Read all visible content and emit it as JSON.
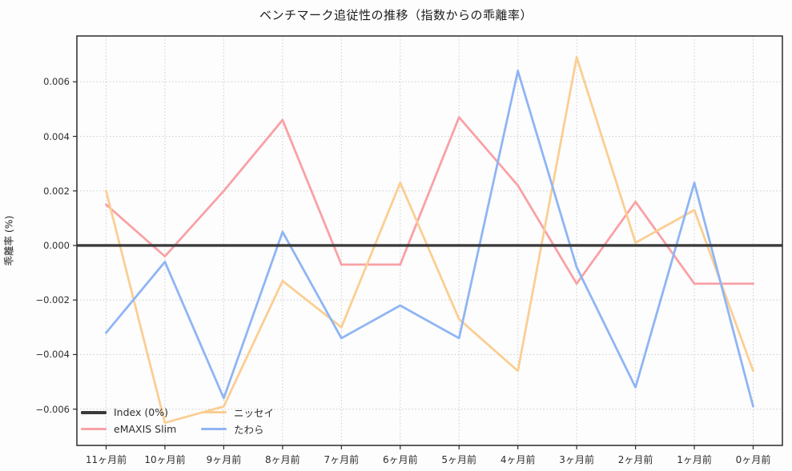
{
  "chart_data": {
    "type": "line",
    "title": "ベンチマーク追従性の推移（指数からの乖離率）",
    "ylabel": "乖離率 (%)",
    "xlabel": "",
    "categories": [
      "11ヶ月前",
      "10ヶ月前",
      "9ヶ月前",
      "8ヶ月前",
      "7ヶ月前",
      "6ヶ月前",
      "5ヶ月前",
      "4ヶ月前",
      "3ヶ月前",
      "2ヶ月前",
      "1ヶ月前",
      "0ヶ月前"
    ],
    "y_tick_labels": [
      "0.006",
      "0.004",
      "0.002",
      "0.000",
      "−0.002",
      "−0.004",
      "−0.006"
    ],
    "y_tick_values": [
      0.006,
      0.004,
      0.002,
      0.0,
      -0.002,
      -0.004,
      -0.006
    ],
    "ylim": [
      -0.00733,
      0.00768
    ],
    "grid": "dotted, both axes",
    "legend_position": "lower left, 2 columns, no frame",
    "zero_line": {
      "label": "Index (0%)",
      "value": 0,
      "color": "#3a3a3a"
    },
    "series": [
      {
        "name": "eMAXIS Slim",
        "color": "#f9a1a6",
        "values": [
          0.0015,
          -0.0004,
          0.002,
          0.0046,
          -0.0007,
          -0.0007,
          0.0047,
          0.0022,
          -0.0014,
          0.0016,
          -0.0014,
          -0.0014
        ]
      },
      {
        "name": "ニッセイ",
        "color": "#fbce93",
        "values": [
          0.002,
          -0.0065,
          -0.0059,
          -0.0013,
          -0.003,
          0.0023,
          -0.0027,
          -0.0046,
          0.0069,
          0.0001,
          0.0013,
          -0.0046
        ]
      },
      {
        "name": "たわら",
        "color": "#8fb5f4",
        "values": [
          -0.0032,
          -0.0006,
          -0.0056,
          0.0005,
          -0.0034,
          -0.0022,
          -0.0034,
          0.0064,
          -0.0008,
          -0.0052,
          0.0023,
          -0.0059
        ]
      }
    ],
    "legend_items": [
      {
        "label": "Index (0%)",
        "color": "#3a3a3a",
        "thick": true
      },
      {
        "label": "eMAXIS Slim",
        "color": "#f9a1a6",
        "thick": false
      },
      {
        "label": "ニッセイ",
        "color": "#fbce93",
        "thick": false
      },
      {
        "label": "たわら",
        "color": "#8fb5f4",
        "thick": false
      }
    ],
    "frame_color": "#2b2b2b"
  }
}
